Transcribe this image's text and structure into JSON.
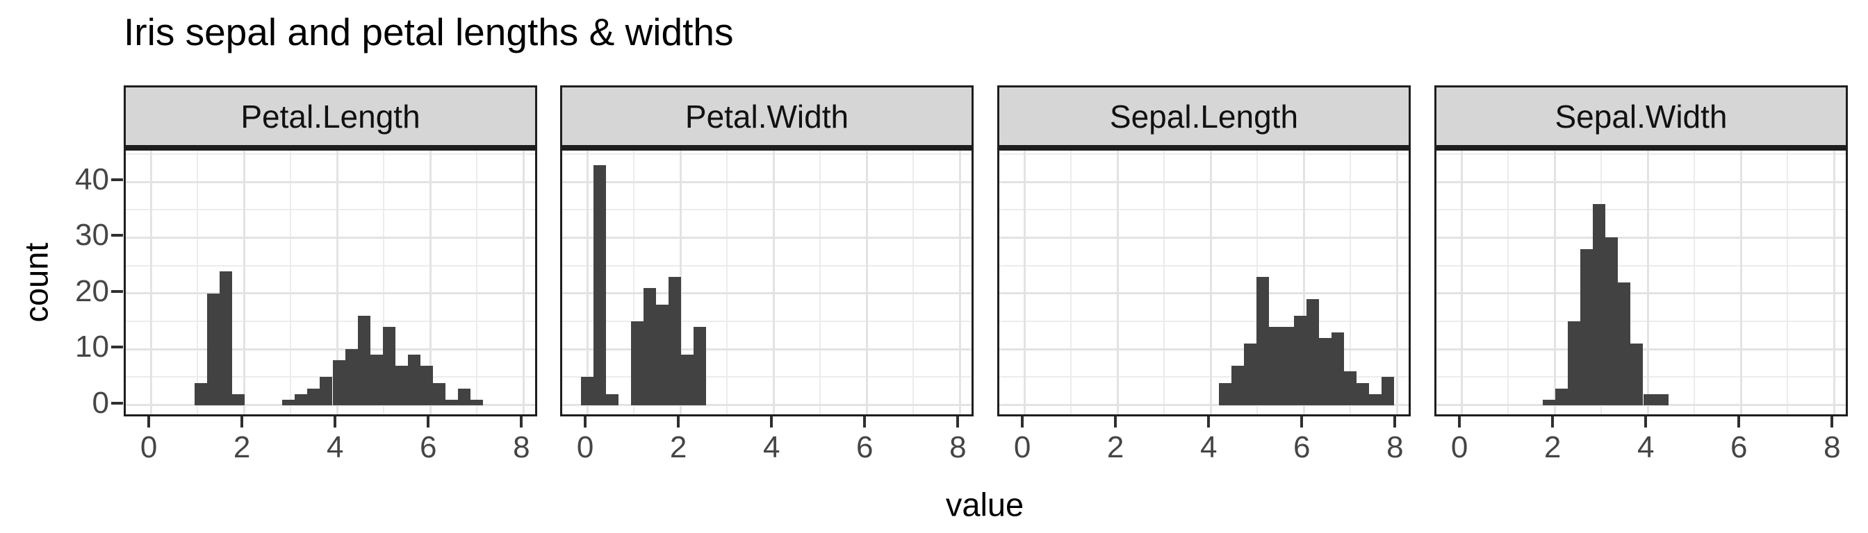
{
  "title": "Iris sepal and petal lengths & widths",
  "axis": {
    "x_title": "value",
    "y_title": "count",
    "x_major_ticks": [
      0,
      2,
      4,
      6,
      8
    ],
    "x_minor_ticks": [
      1,
      3,
      5,
      7
    ],
    "y_major_ticks": [
      0,
      10,
      20,
      30,
      40
    ],
    "y_minor_ticks": [
      5,
      15,
      25,
      35,
      45
    ]
  },
  "colors": {
    "bar_fill": "#424242",
    "strip_fill": "#d6d6d6",
    "border": "#1e1e1e",
    "grid_major": "#e3e3e3",
    "grid_minor": "#ececec",
    "tick_mark": "#2f2f2f",
    "tick_label": "#454545",
    "text": "#000000",
    "panel_bg": "#ffffff"
  },
  "chart_data": {
    "type": "bar",
    "subtype": "faceted-histogram",
    "title": "Iris sepal and petal lengths & widths",
    "xlabel": "value",
    "ylabel": "count",
    "legend": "none",
    "grid": "on",
    "binwidth": 0.269,
    "x_range": [
      -0.538,
      8.338
    ],
    "y_range": [
      -2.4,
      45.6
    ],
    "x_tick_values": [
      0,
      2,
      4,
      6,
      8
    ],
    "y_tick_values": [
      0,
      10,
      20,
      30,
      40
    ],
    "facets": [
      {
        "label": "Petal.Length",
        "bars": [
          {
            "x0": 0.941,
            "n": 4
          },
          {
            "x0": 1.21,
            "n": 20
          },
          {
            "x0": 1.479,
            "n": 24
          },
          {
            "x0": 1.748,
            "n": 2
          },
          {
            "x0": 2.824,
            "n": 1
          },
          {
            "x0": 3.093,
            "n": 2
          },
          {
            "x0": 3.362,
            "n": 3
          },
          {
            "x0": 3.631,
            "n": 5
          },
          {
            "x0": 3.9,
            "n": 8
          },
          {
            "x0": 4.169,
            "n": 10
          },
          {
            "x0": 4.438,
            "n": 16
          },
          {
            "x0": 4.707,
            "n": 9
          },
          {
            "x0": 4.976,
            "n": 14
          },
          {
            "x0": 5.245,
            "n": 7
          },
          {
            "x0": 5.514,
            "n": 9
          },
          {
            "x0": 5.783,
            "n": 7
          },
          {
            "x0": 6.052,
            "n": 4
          },
          {
            "x0": 6.321,
            "n": 1
          },
          {
            "x0": 6.59,
            "n": 3
          },
          {
            "x0": 6.859,
            "n": 1
          }
        ]
      },
      {
        "label": "Petal.Width",
        "bars": [
          {
            "x0": -0.134,
            "n": 5
          },
          {
            "x0": 0.134,
            "n": 43
          },
          {
            "x0": 0.403,
            "n": 2
          },
          {
            "x0": 0.941,
            "n": 15
          },
          {
            "x0": 1.21,
            "n": 21
          },
          {
            "x0": 1.479,
            "n": 18
          },
          {
            "x0": 1.748,
            "n": 23
          },
          {
            "x0": 2.017,
            "n": 9
          },
          {
            "x0": 2.286,
            "n": 14
          }
        ]
      },
      {
        "label": "Sepal.Length",
        "bars": [
          {
            "x0": 4.169,
            "n": 4
          },
          {
            "x0": 4.438,
            "n": 7
          },
          {
            "x0": 4.707,
            "n": 11
          },
          {
            "x0": 4.976,
            "n": 23
          },
          {
            "x0": 5.245,
            "n": 14
          },
          {
            "x0": 5.514,
            "n": 14
          },
          {
            "x0": 5.783,
            "n": 16
          },
          {
            "x0": 6.052,
            "n": 19
          },
          {
            "x0": 6.321,
            "n": 12
          },
          {
            "x0": 6.59,
            "n": 13
          },
          {
            "x0": 6.859,
            "n": 6
          },
          {
            "x0": 7.128,
            "n": 4
          },
          {
            "x0": 7.397,
            "n": 2
          },
          {
            "x0": 7.666,
            "n": 5
          }
        ]
      },
      {
        "label": "Sepal.Width",
        "bars": [
          {
            "x0": 1.748,
            "n": 1
          },
          {
            "x0": 2.017,
            "n": 3
          },
          {
            "x0": 2.286,
            "n": 15
          },
          {
            "x0": 2.555,
            "n": 28
          },
          {
            "x0": 2.824,
            "n": 36
          },
          {
            "x0": 3.093,
            "n": 30
          },
          {
            "x0": 3.362,
            "n": 22
          },
          {
            "x0": 3.631,
            "n": 11
          },
          {
            "x0": 3.9,
            "n": 2
          },
          {
            "x0": 4.169,
            "n": 2
          }
        ]
      }
    ]
  }
}
